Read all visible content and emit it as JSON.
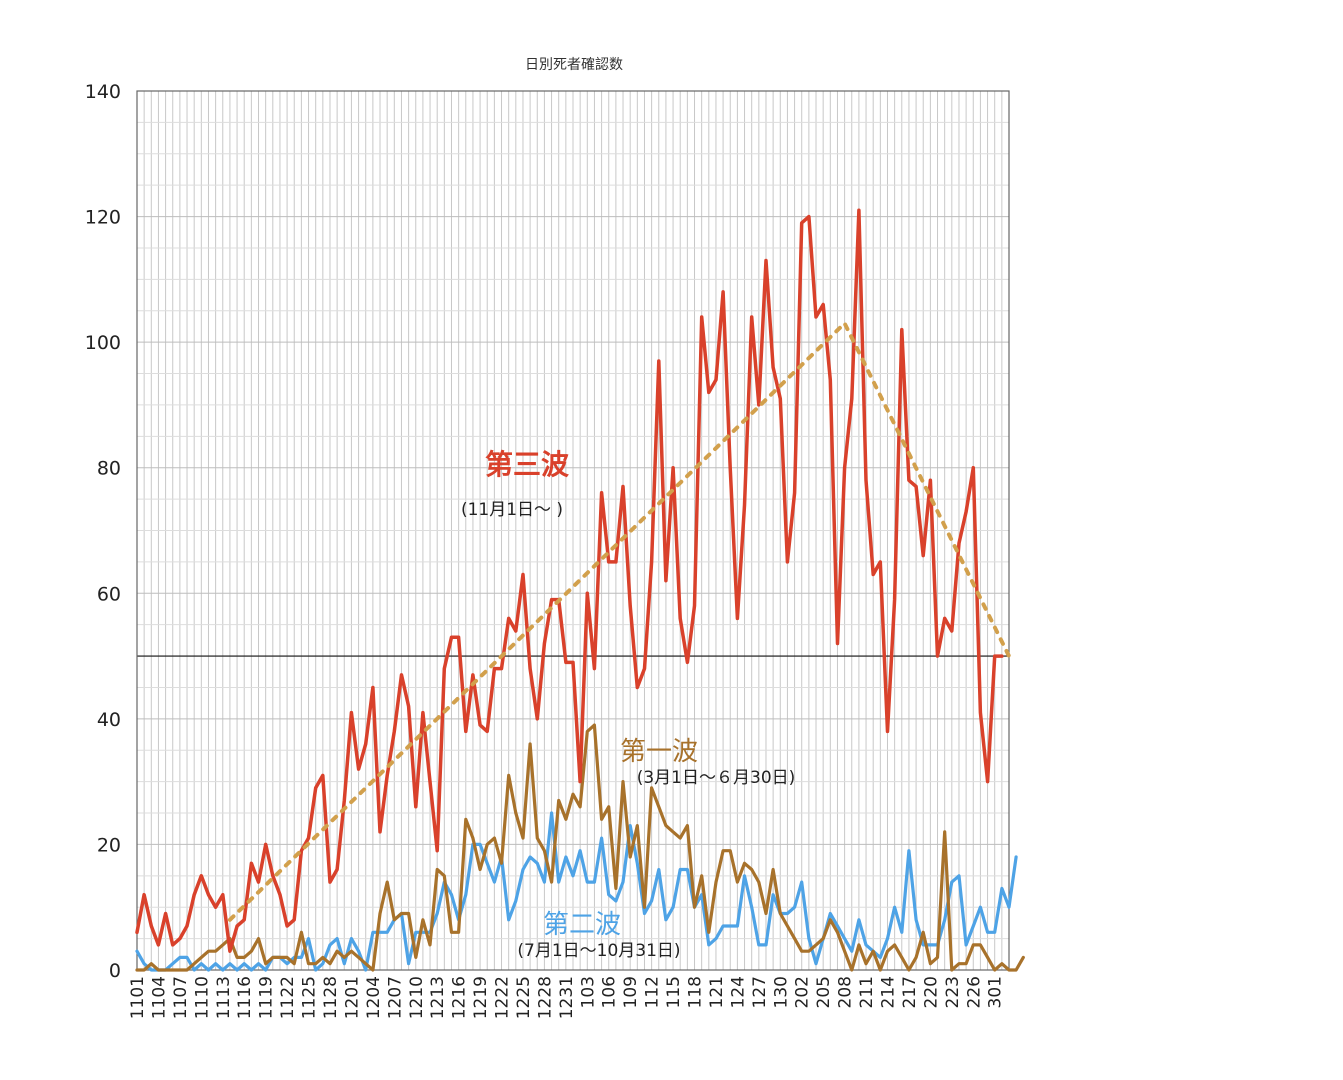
{
  "chart_data": {
    "type": "line",
    "title": "日別死者確認数",
    "xlabel": "",
    "ylabel": "",
    "ylim": [
      0,
      140
    ],
    "yticks": [
      0,
      20,
      40,
      60,
      80,
      100,
      120,
      140
    ],
    "grid": true,
    "reference_line": 50,
    "x_tick_labels": [
      "1101",
      "1104",
      "1107",
      "1110",
      "1113",
      "1116",
      "1119",
      "1122",
      "1125",
      "1128",
      "1201",
      "1204",
      "1207",
      "1210",
      "1213",
      "1216",
      "1219",
      "1222",
      "1225",
      "1228",
      "1231",
      "103",
      "106",
      "109",
      "112",
      "115",
      "118",
      "121",
      "124",
      "127",
      "130",
      "202",
      "205",
      "208",
      "211",
      "214",
      "217",
      "220",
      "223",
      "226",
      "301"
    ],
    "series": [
      {
        "name": "第三波",
        "color": "#d9412b",
        "values": [
          6,
          12,
          7,
          4,
          9,
          4,
          5,
          7,
          12,
          15,
          12,
          10,
          12,
          3,
          7,
          8,
          17,
          14,
          20,
          15,
          12,
          7,
          8,
          19,
          21,
          29,
          31,
          14,
          16,
          27,
          41,
          32,
          36,
          45,
          22,
          31,
          38,
          47,
          42,
          26,
          41,
          30,
          19,
          48,
          53,
          53,
          38,
          47,
          39,
          38,
          48,
          48,
          56,
          54,
          63,
          48,
          40,
          52,
          59,
          59,
          49,
          49,
          30,
          60,
          48,
          76,
          65,
          65,
          77,
          58,
          45,
          48,
          65,
          97,
          62,
          80,
          56,
          49,
          58,
          104,
          92,
          94,
          108,
          80,
          56,
          74,
          104,
          90,
          113,
          96,
          91,
          65,
          76,
          119,
          120,
          104,
          106,
          94,
          52,
          80,
          91,
          121,
          78,
          63,
          65,
          38,
          59,
          102,
          78,
          77,
          66,
          78,
          50,
          56,
          54,
          68,
          73,
          80,
          41,
          30,
          50,
          50
        ]
      },
      {
        "name": "第一波",
        "color": "#a8722b",
        "values": [
          0,
          0,
          1,
          0,
          0,
          0,
          0,
          0,
          1,
          2,
          3,
          3,
          4,
          5,
          2,
          2,
          3,
          5,
          1,
          2,
          2,
          2,
          1,
          6,
          1,
          1,
          2,
          1,
          3,
          2,
          3,
          2,
          1,
          0,
          9,
          14,
          8,
          9,
          9,
          2,
          8,
          4,
          16,
          15,
          6,
          6,
          24,
          21,
          16,
          20,
          21,
          17,
          31,
          25,
          21,
          36,
          21,
          19,
          14,
          27,
          24,
          28,
          26,
          38,
          39,
          24,
          26,
          13,
          30,
          18,
          23,
          10,
          29,
          26,
          23,
          22,
          21,
          23,
          10,
          15,
          6,
          14,
          19,
          19,
          14,
          17,
          16,
          14,
          9,
          16,
          9,
          7,
          5,
          3,
          3,
          4,
          5,
          8,
          6,
          3,
          0,
          4,
          1,
          3,
          0,
          3,
          4,
          2,
          0,
          2,
          6,
          1,
          2,
          22,
          0,
          1,
          1,
          4,
          4,
          2,
          0,
          1,
          0,
          0,
          2
        ]
      },
      {
        "name": "第二波",
        "color": "#4ea3e6",
        "values": [
          3,
          1,
          0,
          0,
          0,
          1,
          2,
          2,
          0,
          1,
          0,
          1,
          0,
          1,
          0,
          1,
          0,
          1,
          0,
          2,
          2,
          1,
          2,
          2,
          5,
          0,
          1,
          4,
          5,
          1,
          5,
          3,
          0,
          6,
          6,
          6,
          8,
          9,
          1,
          6,
          6,
          6,
          9,
          14,
          12,
          8,
          12,
          20,
          20,
          17,
          14,
          18,
          8,
          11,
          16,
          18,
          17,
          14,
          25,
          14,
          18,
          15,
          19,
          14,
          14,
          21,
          12,
          11,
          14,
          23,
          17,
          9,
          11,
          16,
          8,
          10,
          16,
          16,
          10,
          12,
          4,
          5,
          7,
          7,
          7,
          15,
          10,
          4,
          4,
          12,
          9,
          9,
          10,
          14,
          5,
          1,
          5,
          9,
          7,
          5,
          3,
          8,
          4,
          3,
          2,
          5,
          10,
          6,
          19,
          8,
          4,
          4,
          4,
          8,
          14,
          15,
          4,
          7,
          10,
          6,
          6,
          13,
          10,
          18
        ]
      },
      {
        "name": "",
        "style": "dotted-trend",
        "color": "#d2a04c",
        "trend": [
          [
            13,
            8
          ],
          [
            99,
            103
          ],
          [
            122,
            50
          ]
        ]
      }
    ],
    "annotations": [
      {
        "text": "第三波",
        "color": "#d9412b"
      },
      {
        "text": "(11月1日〜 )",
        "color": "#222222"
      },
      {
        "text": "第一波",
        "color": "#a8722b"
      },
      {
        "text": "(3月1日〜６月30日)",
        "color": "#222222"
      },
      {
        "text": "第二波",
        "color": "#4ea3e6"
      },
      {
        "text": "(7月1日〜10月31日)",
        "color": "#222222"
      }
    ]
  }
}
